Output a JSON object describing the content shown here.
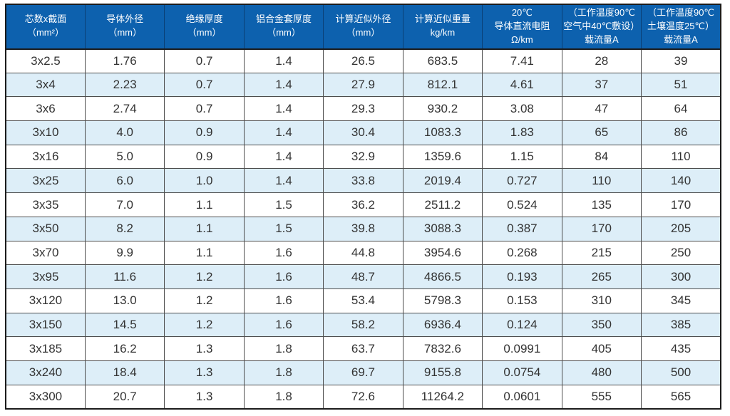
{
  "table": {
    "headers": [
      {
        "lines": [
          "芯数x截面",
          "（mm²）"
        ]
      },
      {
        "lines": [
          "导体外径",
          "（mm）"
        ]
      },
      {
        "lines": [
          "绝缘厚度",
          "（mm）"
        ]
      },
      {
        "lines": [
          "铝合金套厚度",
          "（mm）"
        ]
      },
      {
        "lines": [
          "计算近似外径",
          "（mm）"
        ]
      },
      {
        "lines": [
          "计算近似重量",
          "kg/km"
        ]
      },
      {
        "lines": [
          "20℃",
          "导体直流电阻",
          "Ω/km"
        ]
      },
      {
        "lines": [
          "（工作温度90℃",
          "空气中40℃敷设）",
          "载流量A"
        ]
      },
      {
        "lines": [
          "（工作温度90℃",
          "土壤温度25℃）",
          "载流量A"
        ]
      }
    ],
    "rows": [
      [
        "3x2.5",
        "1.76",
        "0.7",
        "1.4",
        "26.5",
        "683.5",
        "7.41",
        "28",
        "39"
      ],
      [
        "3x4",
        "2.23",
        "0.7",
        "1.4",
        "27.9",
        "812.1",
        "4.61",
        "37",
        "51"
      ],
      [
        "3x6",
        "2.74",
        "0.7",
        "1.4",
        "29.3",
        "930.2",
        "3.08",
        "47",
        "64"
      ],
      [
        "3x10",
        "4.0",
        "0.9",
        "1.4",
        "30.4",
        "1083.3",
        "1.83",
        "65",
        "86"
      ],
      [
        "3x16",
        "5.0",
        "0.9",
        "1.4",
        "32.9",
        "1359.6",
        "1.15",
        "84",
        "110"
      ],
      [
        "3x25",
        "6.0",
        "1.0",
        "1.4",
        "33.8",
        "2019.4",
        "0.727",
        "110",
        "140"
      ],
      [
        "3x35",
        "7.0",
        "1.1",
        "1.5",
        "36.2",
        "2511.2",
        "0.524",
        "135",
        "170"
      ],
      [
        "3x50",
        "8.2",
        "1.1",
        "1.5",
        "39.8",
        "3088.3",
        "0.387",
        "170",
        "205"
      ],
      [
        "3x70",
        "9.9",
        "1.1",
        "1.6",
        "44.8",
        "3954.6",
        "0.268",
        "215",
        "250"
      ],
      [
        "3x95",
        "11.6",
        "1.2",
        "1.6",
        "48.7",
        "4866.5",
        "0.193",
        "265",
        "300"
      ],
      [
        "3x120",
        "13.0",
        "1.2",
        "1.6",
        "53.4",
        "5798.3",
        "0.153",
        "310",
        "345"
      ],
      [
        "3x150",
        "14.5",
        "1.2",
        "1.6",
        "58.2",
        "6936.4",
        "0.124",
        "350",
        "385"
      ],
      [
        "3x185",
        "16.2",
        "1.3",
        "1.8",
        "63.7",
        "7832.6",
        "0.0991",
        "405",
        "435"
      ],
      [
        "3x240",
        "18.4",
        "1.3",
        "1.8",
        "69.7",
        "9155.8",
        "0.0754",
        "480",
        "500"
      ],
      [
        "3x300",
        "20.7",
        "1.3",
        "1.8",
        "72.6",
        "11264.2",
        "0.0601",
        "555",
        "565"
      ]
    ]
  },
  "colors": {
    "header_bg": "#0d61ae",
    "header_text": "#ffffff",
    "row_alt_bg": "#ddeef8",
    "row_bg": "#ffffff",
    "body_text": "#333333",
    "border": "#1b1b1b"
  },
  "chart_data": {
    "type": "table",
    "columns": [
      "芯数x截面（mm²）",
      "导体外径（mm）",
      "绝缘厚度（mm）",
      "铝合金套厚度（mm）",
      "计算近似外径（mm）",
      "计算近似重量 kg/km",
      "20℃导体直流电阻 Ω/km",
      "（工作温度90℃ 空气中40℃敷设）载流量A",
      "（工作温度90℃ 土壤温度25℃）载流量A"
    ],
    "rows": [
      [
        "3x2.5",
        1.76,
        0.7,
        1.4,
        26.5,
        683.5,
        7.41,
        28,
        39
      ],
      [
        "3x4",
        2.23,
        0.7,
        1.4,
        27.9,
        812.1,
        4.61,
        37,
        51
      ],
      [
        "3x6",
        2.74,
        0.7,
        1.4,
        29.3,
        930.2,
        3.08,
        47,
        64
      ],
      [
        "3x10",
        4.0,
        0.9,
        1.4,
        30.4,
        1083.3,
        1.83,
        65,
        86
      ],
      [
        "3x16",
        5.0,
        0.9,
        1.4,
        32.9,
        1359.6,
        1.15,
        84,
        110
      ],
      [
        "3x25",
        6.0,
        1.0,
        1.4,
        33.8,
        2019.4,
        0.727,
        110,
        140
      ],
      [
        "3x35",
        7.0,
        1.1,
        1.5,
        36.2,
        2511.2,
        0.524,
        135,
        170
      ],
      [
        "3x50",
        8.2,
        1.1,
        1.5,
        39.8,
        3088.3,
        0.387,
        170,
        205
      ],
      [
        "3x70",
        9.9,
        1.1,
        1.6,
        44.8,
        3954.6,
        0.268,
        215,
        250
      ],
      [
        "3x95",
        11.6,
        1.2,
        1.6,
        48.7,
        4866.5,
        0.193,
        265,
        300
      ],
      [
        "3x120",
        13.0,
        1.2,
        1.6,
        53.4,
        5798.3,
        0.153,
        310,
        345
      ],
      [
        "3x150",
        14.5,
        1.2,
        1.6,
        58.2,
        6936.4,
        0.124,
        350,
        385
      ],
      [
        "3x185",
        16.2,
        1.3,
        1.8,
        63.7,
        7832.6,
        0.0991,
        405,
        435
      ],
      [
        "3x240",
        18.4,
        1.3,
        1.8,
        69.7,
        9155.8,
        0.0754,
        480,
        500
      ],
      [
        "3x300",
        20.7,
        1.3,
        1.8,
        72.6,
        11264.2,
        0.0601,
        555,
        565
      ]
    ]
  }
}
